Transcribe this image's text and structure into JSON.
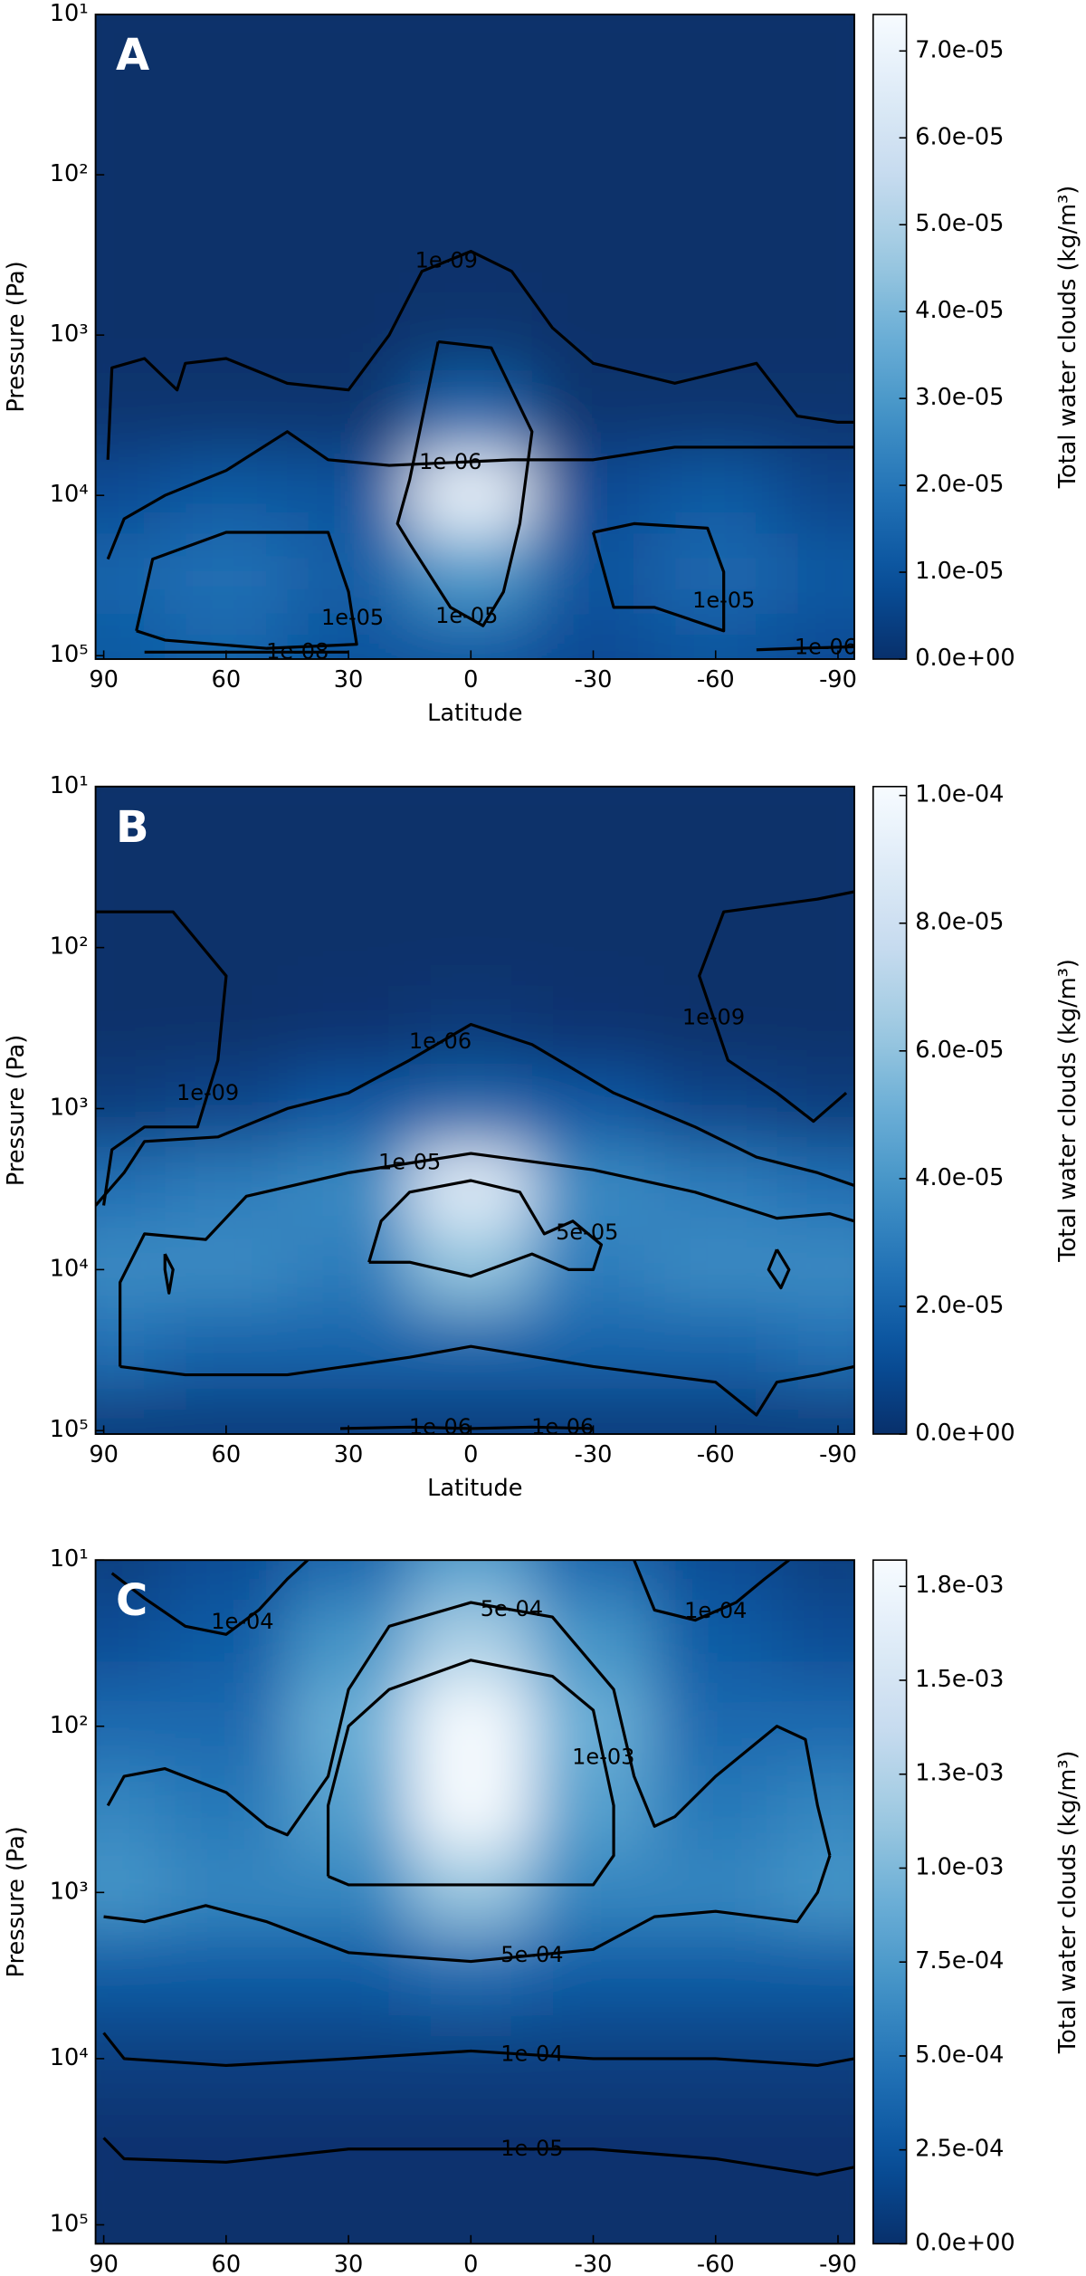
{
  "chart_data": [
    {
      "type": "heatmap",
      "panel_label": "A",
      "xlabel": "Latitude",
      "ylabel": "Pressure (Pa)",
      "colorbar_label": "Total water clouds (kg/m³)",
      "colormap": "Blues_r",
      "ylog": true,
      "x": [
        90,
        60,
        30,
        0,
        -30,
        -60,
        -90
      ],
      "y": [
        10,
        30,
        100,
        300,
        1000,
        3000,
        10000,
        30000,
        100000
      ],
      "values": [
        [
          0,
          0,
          0,
          0,
          0,
          0,
          0
        ],
        [
          0,
          0,
          0,
          0,
          0,
          0,
          0
        ],
        [
          0,
          0,
          0,
          0,
          0,
          0,
          0
        ],
        [
          0,
          0,
          0,
          0,
          0,
          0,
          0
        ],
        [
          0,
          0,
          0,
          1e-06,
          0,
          0,
          0
        ],
        [
          1e-06,
          1e-06,
          1e-06,
          1.5e-05,
          1e-06,
          1e-06,
          1e-06
        ],
        [
          8e-06,
          1.2e-05,
          1e-05,
          7e-05,
          8e-06,
          1.2e-05,
          6e-06
        ],
        [
          1.5e-05,
          1.8e-05,
          1.3e-05,
          3e-05,
          1e-05,
          1.6e-05,
          1.2e-05
        ],
        [
          1.2e-05,
          1.5e-05,
          1e-05,
          1.2e-05,
          8e-06,
          1e-05,
          8e-06
        ]
      ],
      "xlim": [
        92,
        -94
      ],
      "ylim": [
        105000,
        10
      ],
      "xticks": [
        90,
        60,
        30,
        0,
        -30,
        -60,
        -90
      ],
      "yticks": [
        {
          "value": 10,
          "label": "10¹"
        },
        {
          "value": 100,
          "label": "10²"
        },
        {
          "value": 1000,
          "label": "10³"
        },
        {
          "value": 10000,
          "label": "10⁴"
        },
        {
          "value": 100000,
          "label": "10⁵"
        }
      ],
      "clim": [
        0,
        7.42e-05
      ],
      "cticks": [
        {
          "value": 0,
          "label": "0.0e+00"
        },
        {
          "value": 1e-05,
          "label": "1.0e-05"
        },
        {
          "value": 2e-05,
          "label": "2.0e-05"
        },
        {
          "value": 3e-05,
          "label": "3.0e-05"
        },
        {
          "value": 4e-05,
          "label": "4.0e-05"
        },
        {
          "value": 5e-05,
          "label": "5.0e-05"
        },
        {
          "value": 6e-05,
          "label": "6.0e-05"
        },
        {
          "value": 7e-05,
          "label": "7.0e-05"
        }
      ],
      "contours": [
        {
          "label": "1e-09",
          "x": [
            89,
            88,
            80,
            72,
            70,
            60,
            45,
            30,
            20,
            12,
            0,
            -10,
            -20,
            -30,
            -50,
            -70,
            -80,
            -90,
            -94
          ],
          "y": [
            6000,
            1600,
            1400,
            2200,
            1500,
            1400,
            2000,
            2200,
            1000,
            400,
            300,
            400,
            900,
            1500,
            2000,
            1500,
            3200,
            3500,
            3500
          ]
        },
        {
          "label": "1e-06",
          "x": [
            89,
            85,
            75,
            60,
            45,
            35,
            20,
            -10,
            -30,
            -50,
            -60,
            -75,
            -94
          ],
          "y": [
            25000,
            14000,
            10000,
            7000,
            4000,
            6000,
            6500,
            6000,
            6000,
            5000,
            5000,
            5000,
            5000
          ]
        },
        {
          "label": "1e-05",
          "x": [
            82,
            78,
            60,
            35,
            30,
            28,
            50,
            75,
            82
          ],
          "y": [
            70000,
            25000,
            17000,
            17000,
            40000,
            85000,
            90000,
            80000,
            70000
          ]
        },
        {
          "label": "1e-05",
          "x": [
            8,
            -5,
            -15,
            -12,
            -8,
            -3,
            5,
            15,
            18,
            15,
            8
          ],
          "y": [
            1100,
            1200,
            4000,
            15000,
            40000,
            65000,
            50000,
            20000,
            15000,
            8000,
            1100
          ]
        },
        {
          "label": "1e-05",
          "x": [
            -30,
            -40,
            -58,
            -62,
            -62,
            -45,
            -35,
            -30
          ],
          "y": [
            17000,
            15000,
            16000,
            30000,
            70000,
            50000,
            50000,
            17000
          ]
        },
        {
          "label": "1e-08",
          "x": [
            80,
            55,
            30
          ],
          "y": [
            95000,
            95000,
            95000
          ]
        },
        {
          "label": "1e-06",
          "x": [
            -70,
            -80,
            -94
          ],
          "y": [
            92000,
            90000,
            88000
          ]
        }
      ]
    },
    {
      "type": "heatmap",
      "panel_label": "B",
      "xlabel": "Latitude",
      "ylabel": "Pressure (Pa)",
      "colorbar_label": "Total water clouds (kg/m³)",
      "colormap": "Blues_r",
      "ylog": true,
      "x": [
        90,
        60,
        30,
        0,
        -30,
        -60,
        -90
      ],
      "y": [
        10,
        30,
        100,
        300,
        1000,
        3000,
        10000,
        30000,
        100000
      ],
      "values": [
        [
          0,
          0,
          0,
          0,
          0,
          0,
          0
        ],
        [
          0,
          0,
          0,
          0,
          0,
          0,
          0
        ],
        [
          0,
          0,
          0,
          0,
          0,
          0,
          0
        ],
        [
          0,
          0,
          1e-06,
          3e-06,
          1e-06,
          0,
          0
        ],
        [
          5e-06,
          8e-06,
          1.5e-05,
          2e-05,
          1.5e-05,
          8e-06,
          5e-06
        ],
        [
          2.5e-05,
          3e-05,
          3.5e-05,
          9e-05,
          3.5e-05,
          3e-05,
          2.5e-05
        ],
        [
          3.5e-05,
          3.5e-05,
          3e-05,
          6e-05,
          3e-05,
          3.5e-05,
          3.5e-05
        ],
        [
          2.5e-05,
          2e-05,
          2e-05,
          2e-05,
          2e-05,
          2e-05,
          2.5e-05
        ],
        [
          5e-06,
          5e-06,
          5e-06,
          5e-06,
          5e-06,
          5e-06,
          5e-06
        ]
      ],
      "xlim": [
        92,
        -94
      ],
      "ylim": [
        105000,
        10
      ],
      "xticks": [
        90,
        60,
        30,
        0,
        -30,
        -60,
        -90
      ],
      "yticks": [
        {
          "value": 10,
          "label": "10¹"
        },
        {
          "value": 100,
          "label": "10²"
        },
        {
          "value": 1000,
          "label": "10³"
        },
        {
          "value": 10000,
          "label": "10⁴"
        },
        {
          "value": 100000,
          "label": "10⁵"
        }
      ],
      "clim": [
        0,
        0.0001014
      ],
      "cticks": [
        {
          "value": 0,
          "label": "0.0e+00"
        },
        {
          "value": 2e-05,
          "label": "2.0e-05"
        },
        {
          "value": 4e-05,
          "label": "4.0e-05"
        },
        {
          "value": 6e-05,
          "label": "6.0e-05"
        },
        {
          "value": 8e-05,
          "label": "8.0e-05"
        },
        {
          "value": 0.0001,
          "label": "1.0e-04"
        }
      ],
      "contours": [
        {
          "label": "1e-09",
          "x": [
            92,
            73,
            60,
            62,
            67,
            80,
            88,
            90
          ],
          "y": [
            60,
            60,
            150,
            500,
            1300,
            1300,
            1800,
            4000
          ]
        },
        {
          "label": "1e-09",
          "x": [
            -94,
            -85,
            -62,
            -56,
            -63,
            -75,
            -84,
            -92
          ],
          "y": [
            45,
            50,
            60,
            150,
            500,
            800,
            1200,
            800
          ]
        },
        {
          "label": "1e-06",
          "x": [
            92,
            85,
            80,
            62,
            45,
            30,
            15,
            0,
            -15,
            -35,
            -55,
            -70,
            -85,
            -94
          ],
          "y": [
            4000,
            2500,
            1600,
            1500,
            1000,
            800,
            500,
            300,
            400,
            800,
            1300,
            2000,
            2500,
            3000
          ]
        },
        {
          "label": "1e-05",
          "x": [
            86,
            86,
            80,
            65,
            55,
            30,
            0,
            -30,
            -55,
            -75,
            -88,
            -94
          ],
          "y": [
            40000,
            12000,
            6000,
            6500,
            3500,
            2500,
            1900,
            2400,
            3300,
            4800,
            4500,
            5000
          ]
        },
        {
          "x": [
            86,
            70,
            45,
            15,
            0,
            -30,
            -60,
            -70,
            -75,
            -85,
            -94
          ],
          "y": [
            40000,
            45000,
            45000,
            35000,
            30000,
            40000,
            50000,
            80000,
            50000,
            45000,
            40000
          ]
        },
        {
          "label": "5e-05",
          "x": [
            25,
            22,
            15,
            0,
            -12,
            -18,
            -25,
            -32,
            -30,
            -24,
            -15,
            0,
            15,
            25
          ],
          "y": [
            9000,
            5000,
            3300,
            2800,
            3300,
            6000,
            5000,
            7000,
            10000,
            10000,
            8000,
            11000,
            9000,
            9000
          ]
        },
        {
          "x": [
            75,
            73,
            74,
            75,
            75
          ],
          "y": [
            8000,
            10000,
            14000,
            10000,
            8000
          ]
        },
        {
          "x": [
            -75,
            -73,
            -76,
            -78,
            -75
          ],
          "y": [
            7500,
            10000,
            13000,
            10000,
            7500
          ]
        },
        {
          "label": "1e-06",
          "x": [
            32,
            15,
            0
          ],
          "y": [
            97000,
            95000,
            97000
          ]
        },
        {
          "label": "1e-06",
          "x": [
            0,
            -15,
            -30
          ],
          "y": [
            97000,
            95000,
            97000
          ]
        }
      ]
    },
    {
      "type": "heatmap",
      "panel_label": "C",
      "xlabel": "Latitude",
      "ylabel": "Pressure (Pa)",
      "colorbar_label": "Total water clouds (kg/m³)",
      "colormap": "Blues_r",
      "ylog": true,
      "x": [
        90,
        60,
        30,
        0,
        -30,
        -60,
        -90
      ],
      "y": [
        10,
        30,
        100,
        300,
        1000,
        3000,
        10000,
        30000,
        100000
      ],
      "values": [
        [
          0.0001,
          0.0002,
          0.0004,
          0.0008,
          0.0004,
          0.0002,
          0.0001
        ],
        [
          0.0002,
          0.0003,
          0.0007,
          0.0012,
          0.0007,
          0.0003,
          0.0002
        ],
        [
          0.0004,
          0.0004,
          0.0009,
          0.0018,
          0.0009,
          0.0004,
          0.0004
        ],
        [
          0.0006,
          0.0005,
          0.0008,
          0.0018,
          0.0008,
          0.0005,
          0.0006
        ],
        [
          0.0007,
          0.0006,
          0.0006,
          0.0011,
          0.0006,
          0.0006,
          0.0007
        ],
        [
          0.0003,
          0.0003,
          0.0003,
          0.0004,
          0.0003,
          0.0003,
          0.0003
        ],
        [
          0.0001,
          0.0001,
          0.0001,
          0.0001,
          0.0001,
          0.0001,
          0.0001
        ],
        [
          2e-05,
          2e-05,
          2e-05,
          2e-05,
          2e-05,
          2e-05,
          2e-05
        ],
        [
          5e-06,
          5e-06,
          5e-06,
          5e-06,
          5e-06,
          5e-06,
          5e-06
        ]
      ],
      "xlim": [
        92,
        -94
      ],
      "ylim": [
        130000,
        10
      ],
      "xticks": [
        90,
        60,
        30,
        0,
        -30,
        -60,
        -90
      ],
      "yticks": [
        {
          "value": 10,
          "label": "10¹"
        },
        {
          "value": 100,
          "label": "10²"
        },
        {
          "value": 1000,
          "label": "10³"
        },
        {
          "value": 10000,
          "label": "10⁴"
        },
        {
          "value": 100000,
          "label": "10⁵"
        }
      ],
      "clim": [
        0,
        0.00182
      ],
      "cticks": [
        {
          "value": 0,
          "label": "0.0e+00"
        },
        {
          "value": 0.00025,
          "label": "2.5e-04"
        },
        {
          "value": 0.0005,
          "label": "5.0e-04"
        },
        {
          "value": 0.00075,
          "label": "7.5e-04"
        },
        {
          "value": 0.001,
          "label": "1.0e-03"
        },
        {
          "value": 0.00125,
          "label": "1.3e-03"
        },
        {
          "value": 0.0015,
          "label": "1.5e-03"
        },
        {
          "value": 0.00175,
          "label": "1.8e-03"
        }
      ],
      "contours": [
        {
          "label": "1e-04",
          "x": [
            88,
            80,
            70,
            60,
            52,
            45,
            40
          ],
          "y": [
            12,
            17,
            25,
            28,
            20,
            13,
            10
          ]
        },
        {
          "label": "1e-04",
          "x": [
            -40,
            -45,
            -55,
            -65,
            -72,
            -78
          ],
          "y": [
            10,
            20,
            23,
            18,
            13,
            10
          ]
        },
        {
          "label": "5e-04",
          "x": [
            89,
            85,
            75,
            60,
            50,
            45,
            35,
            30,
            20,
            0,
            -20,
            -35,
            -40,
            -45,
            -50,
            -60,
            -75,
            -82,
            -85,
            -88
          ],
          "y": [
            300,
            200,
            180,
            250,
            400,
            450,
            200,
            60,
            25,
            18,
            22,
            60,
            200,
            400,
            350,
            200,
            100,
            120,
            300,
            600
          ]
        },
        {
          "label": "5e-04",
          "x": [
            90,
            80,
            65,
            50,
            30,
            0,
            -30,
            -45,
            -60,
            -80,
            -85,
            -88
          ],
          "y": [
            1400,
            1500,
            1200,
            1500,
            2300,
            2600,
            2200,
            1400,
            1300,
            1500,
            1000,
            600
          ]
        },
        {
          "label": "1e-03",
          "x": [
            35,
            35,
            30,
            20,
            0,
            -20,
            -30,
            -35,
            -35,
            -30,
            0,
            30,
            35
          ],
          "y": [
            800,
            300,
            100,
            60,
            40,
            50,
            80,
            300,
            600,
            900,
            900,
            900,
            800
          ]
        },
        {
          "label": "1e-04",
          "x": [
            90,
            85,
            60,
            30,
            0,
            -30,
            -60,
            -85,
            -94
          ],
          "y": [
            7000,
            10000,
            11000,
            10000,
            9000,
            10000,
            10000,
            11000,
            10000
          ]
        },
        {
          "label": "1e-05",
          "x": [
            90,
            85,
            60,
            30,
            0,
            -30,
            -60,
            -85,
            -94
          ],
          "y": [
            30000,
            40000,
            42000,
            35000,
            35000,
            35000,
            40000,
            50000,
            45000
          ]
        }
      ]
    }
  ]
}
